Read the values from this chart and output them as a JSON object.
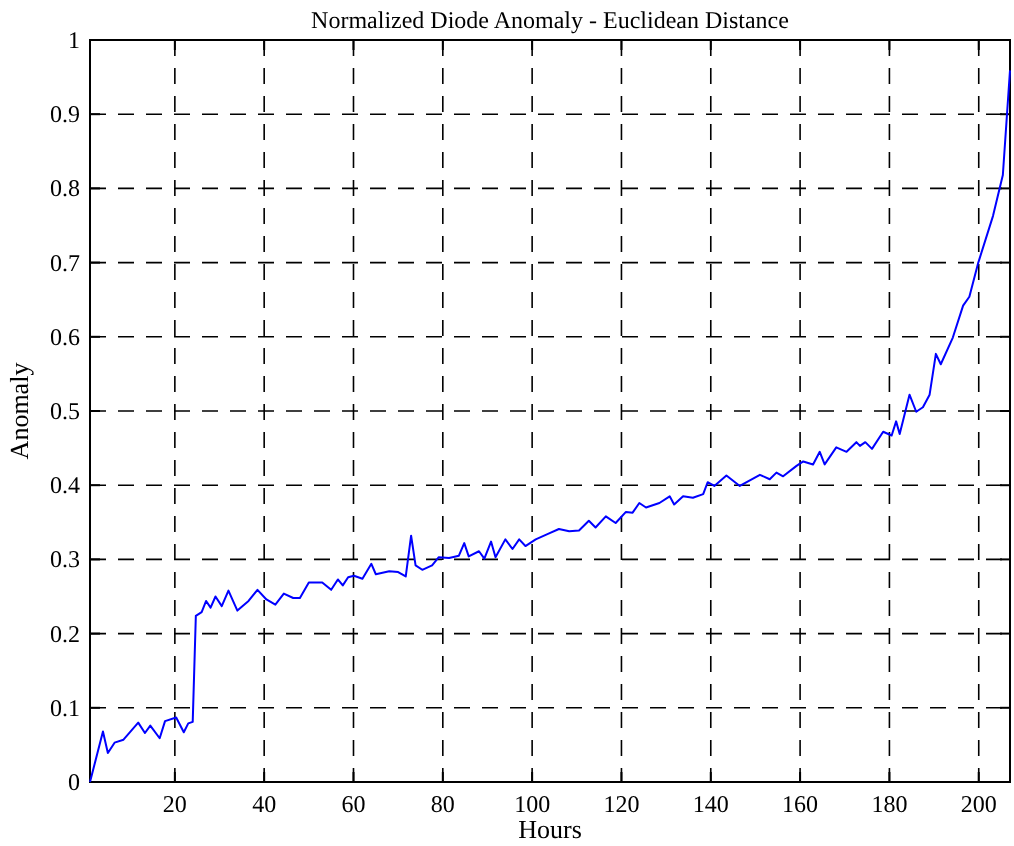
{
  "chart_data": {
    "type": "line",
    "title": "Normalized Diode Anomaly - Euclidean Distance",
    "xlabel": "Hours",
    "ylabel": "Anomaly",
    "xlim": [
      1,
      207
    ],
    "ylim": [
      0,
      1
    ],
    "xticks": [
      20,
      40,
      60,
      80,
      100,
      120,
      140,
      160,
      180,
      200
    ],
    "yticks": [
      0,
      0.1,
      0.2,
      0.3,
      0.4,
      0.5,
      0.6,
      0.7,
      0.8,
      0.9,
      1
    ],
    "grid": true,
    "line_style": "solid",
    "marker": "none",
    "series": [
      {
        "color": "#0000ff",
        "x": [
          1,
          3.9,
          5,
          6.5,
          8.5,
          11.8,
          13.3,
          14.5,
          16.6,
          17.8,
          20.3,
          22,
          23,
          24,
          24.7,
          26,
          27,
          28,
          29.1,
          30.5,
          32,
          34,
          36.5,
          38.5,
          40.5,
          42.5,
          44.4,
          46.5,
          48,
          50,
          53,
          55,
          56.5,
          57.6,
          58.8,
          60.1,
          62,
          64,
          65,
          68,
          70,
          71.7,
          72.9,
          73.9,
          75.4,
          77.6,
          79.1,
          81.4,
          83.6,
          84.8,
          85.8,
          88.1,
          89.3,
          90.8,
          91.8,
          94,
          95.6,
          97.1,
          98.5,
          100.8,
          103.8,
          106,
          108.3,
          110.5,
          112.7,
          114.2,
          116.5,
          118.7,
          121,
          122.5,
          124,
          125.5,
          128.5,
          130.8,
          131.8,
          133.8,
          136,
          138.3,
          139.3,
          140.8,
          143.5,
          146.5,
          151,
          153.2,
          154.7,
          156.2,
          159.2,
          160.7,
          162.9,
          164.4,
          165.5,
          168.1,
          170.4,
          172.6,
          173.4,
          174.6,
          176.1,
          178.6,
          180.5,
          181.5,
          182.3,
          184.5,
          186,
          187.5,
          189,
          190.4,
          191.5,
          194.2,
          196.5,
          197.9,
          199.9,
          203.2,
          205.4,
          207
        ],
        "values": [
          0,
          0.068,
          0.039,
          0.053,
          0.057,
          0.08,
          0.066,
          0.076,
          0.059,
          0.082,
          0.087,
          0.067,
          0.079,
          0.081,
          0.224,
          0.229,
          0.244,
          0.235,
          0.25,
          0.237,
          0.258,
          0.231,
          0.244,
          0.259,
          0.246,
          0.239,
          0.254,
          0.248,
          0.248,
          0.269,
          0.269,
          0.259,
          0.273,
          0.265,
          0.276,
          0.278,
          0.274,
          0.294,
          0.28,
          0.284,
          0.283,
          0.277,
          0.332,
          0.292,
          0.286,
          0.292,
          0.303,
          0.302,
          0.305,
          0.322,
          0.304,
          0.311,
          0.301,
          0.324,
          0.303,
          0.327,
          0.314,
          0.327,
          0.318,
          0.327,
          0.335,
          0.341,
          0.338,
          0.339,
          0.352,
          0.343,
          0.358,
          0.349,
          0.364,
          0.363,
          0.376,
          0.37,
          0.376,
          0.385,
          0.374,
          0.385,
          0.383,
          0.388,
          0.404,
          0.399,
          0.413,
          0.399,
          0.414,
          0.408,
          0.417,
          0.412,
          0.426,
          0.432,
          0.428,
          0.445,
          0.428,
          0.451,
          0.445,
          0.458,
          0.453,
          0.458,
          0.449,
          0.472,
          0.467,
          0.486,
          0.469,
          0.522,
          0.499,
          0.505,
          0.522,
          0.577,
          0.563,
          0.599,
          0.642,
          0.654,
          0.7,
          0.763,
          0.818,
          0.959
        ]
      }
    ]
  }
}
